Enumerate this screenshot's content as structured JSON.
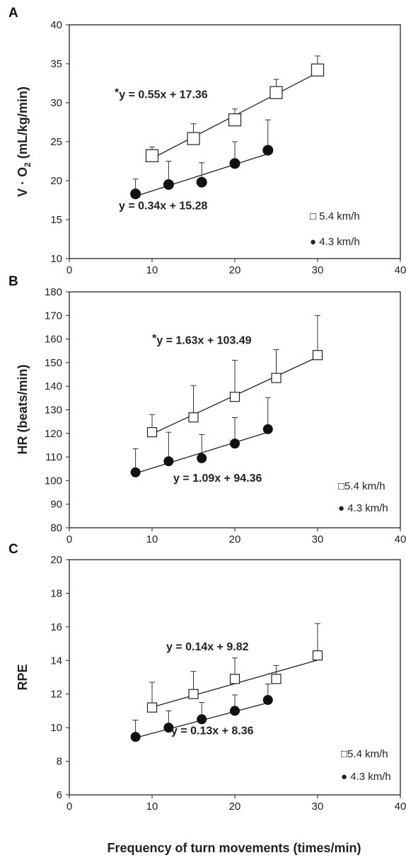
{
  "xlabel": "Frequency of turn movements (times/min)",
  "chart_data": [
    {
      "panel": "A",
      "type": "scatter",
      "xlim": [
        0,
        40
      ],
      "ylim": [
        10,
        40
      ],
      "xticks": [
        "0",
        "10",
        "20",
        "30",
        "40"
      ],
      "yticks": [
        "10",
        "15",
        "20",
        "25",
        "30",
        "35",
        "40"
      ],
      "ylabel": {
        "pre": "V · O",
        "sub": "2",
        "post": " (mL/kg/min)"
      },
      "legend": {
        "position": "bottom-right",
        "items": [
          {
            "symbol": "square",
            "label": "□ 5.4 km/h"
          },
          {
            "symbol": "circle",
            "label": "● 4.3 km/h"
          }
        ]
      },
      "series": [
        {
          "name": "5.4 km/h",
          "marker": "square",
          "points": [
            {
              "x": 10,
              "y": 23.2,
              "err": 1.1
            },
            {
              "x": 15,
              "y": 25.4,
              "err": 1.9
            },
            {
              "x": 20,
              "y": 27.8,
              "err": 1.4
            },
            {
              "x": 25,
              "y": 31.3,
              "err": 1.7
            },
            {
              "x": 30,
              "y": 34.2,
              "err": 1.8
            }
          ],
          "fit": {
            "slope": 0.55,
            "intercept": 17.36,
            "xrange": [
              10,
              30
            ],
            "label_star": "*",
            "label_text": "y = 0.55x + 17.36"
          }
        },
        {
          "name": "4.3 km/h",
          "marker": "circle",
          "points": [
            {
              "x": 8,
              "y": 18.3,
              "err": 1.9
            },
            {
              "x": 12,
              "y": 19.5,
              "err": 3.0
            },
            {
              "x": 16,
              "y": 19.8,
              "err": 2.5
            },
            {
              "x": 20,
              "y": 22.2,
              "err": 2.8
            },
            {
              "x": 24,
              "y": 23.9,
              "err": 3.9
            }
          ],
          "fit": {
            "slope": 0.34,
            "intercept": 15.28,
            "xrange": [
              8,
              24
            ],
            "label_star": "",
            "label_text": "y = 0.34x + 15.28"
          }
        }
      ]
    },
    {
      "panel": "B",
      "type": "scatter",
      "xlim": [
        0,
        40
      ],
      "ylim": [
        80,
        180
      ],
      "xticks": [
        "0",
        "10",
        "20",
        "30",
        "40"
      ],
      "yticks": [
        "80",
        "90",
        "100",
        "110",
        "120",
        "130",
        "140",
        "150",
        "160",
        "170",
        "180"
      ],
      "ylabel": {
        "pre": "HR (beats/min)",
        "sub": "",
        "post": ""
      },
      "legend": {
        "position": "bottom-right",
        "items": [
          {
            "symbol": "square",
            "label": "□5.4 km/h"
          },
          {
            "symbol": "circle",
            "label": "● 4.3 km/h"
          }
        ]
      },
      "series": [
        {
          "name": "5.4 km/h",
          "marker": "square",
          "points": [
            {
              "x": 10,
              "y": 120.5,
              "err": 7.5
            },
            {
              "x": 15,
              "y": 126.8,
              "err": 13.5
            },
            {
              "x": 20,
              "y": 135.5,
              "err": 15.5
            },
            {
              "x": 25,
              "y": 143.5,
              "err": 12.0
            },
            {
              "x": 30,
              "y": 153.2,
              "err": 16.8
            }
          ],
          "fit": {
            "slope": 1.63,
            "intercept": 103.49,
            "xrange": [
              10,
              30
            ],
            "label_star": "*",
            "label_text": "y = 1.63x + 103.49"
          }
        },
        {
          "name": "4.3 km/h",
          "marker": "circle",
          "points": [
            {
              "x": 8,
              "y": 103.5,
              "err": 10.0
            },
            {
              "x": 12,
              "y": 108.2,
              "err": 12.3
            },
            {
              "x": 16,
              "y": 109.5,
              "err": 10.0
            },
            {
              "x": 20,
              "y": 115.7,
              "err": 11.0
            },
            {
              "x": 24,
              "y": 121.8,
              "err": 13.4
            }
          ],
          "fit": {
            "slope": 1.09,
            "intercept": 94.36,
            "xrange": [
              8,
              24
            ],
            "label_star": "",
            "label_text": "y = 1.09x + 94.36"
          }
        }
      ]
    },
    {
      "panel": "C",
      "type": "scatter",
      "xlim": [
        0,
        40
      ],
      "ylim": [
        6,
        20
      ],
      "xticks": [
        "0",
        "10",
        "20",
        "30",
        "40"
      ],
      "yticks": [
        "6",
        "8",
        "10",
        "12",
        "14",
        "16",
        "18",
        "20"
      ],
      "ylabel": {
        "pre": "RPE",
        "sub": "",
        "post": ""
      },
      "legend": {
        "position": "bottom-right",
        "items": [
          {
            "symbol": "square",
            "label": "□5.4 km/h"
          },
          {
            "symbol": "circle",
            "label": "● 4.3 km/h"
          }
        ]
      },
      "series": [
        {
          "name": "5.4 km/h",
          "marker": "square",
          "points": [
            {
              "x": 10,
              "y": 11.2,
              "err": 1.5
            },
            {
              "x": 15,
              "y": 12.0,
              "err": 1.35
            },
            {
              "x": 20,
              "y": 12.9,
              "err": 1.25
            },
            {
              "x": 25,
              "y": 12.9,
              "err": 0.8
            },
            {
              "x": 30,
              "y": 14.3,
              "err": 1.9
            }
          ],
          "fit": {
            "slope": 0.14,
            "intercept": 9.82,
            "xrange": [
              10,
              30
            ],
            "label_star": "",
            "label_text": "y = 0.14x + 9.82"
          }
        },
        {
          "name": "4.3 km/h",
          "marker": "circle",
          "points": [
            {
              "x": 8,
              "y": 9.45,
              "err": 1.0
            },
            {
              "x": 12,
              "y": 10.0,
              "err": 1.0
            },
            {
              "x": 16,
              "y": 10.5,
              "err": 1.0
            },
            {
              "x": 20,
              "y": 11.0,
              "err": 0.95
            },
            {
              "x": 24,
              "y": 11.65,
              "err": 0.95
            }
          ],
          "fit": {
            "slope": 0.13,
            "intercept": 8.36,
            "xrange": [
              8,
              24
            ],
            "label_star": "",
            "label_text": "y = 0.13x + 8.36"
          }
        }
      ]
    }
  ]
}
